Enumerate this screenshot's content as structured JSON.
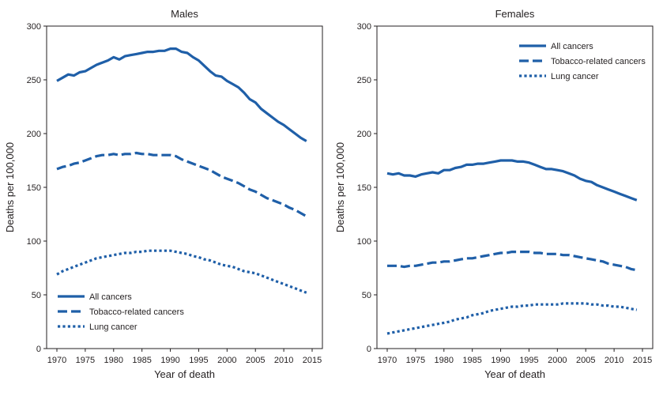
{
  "figure": {
    "xlabel": "Year of death",
    "ylabel": "Deaths per 100,000"
  },
  "chart_data": [
    {
      "type": "line",
      "title": "Males",
      "xlabel": "Year of death",
      "ylabel": "Deaths per 100,000",
      "xlim": [
        1970,
        2015
      ],
      "ylim": [
        0,
        300
      ],
      "xticks": [
        1970,
        1975,
        1980,
        1985,
        1990,
        1995,
        2000,
        2005,
        2010,
        2015
      ],
      "yticks": [
        0,
        50,
        100,
        150,
        200,
        250,
        300
      ],
      "grid": false,
      "legend_position": "bottom-left",
      "x": [
        1970,
        1971,
        1972,
        1973,
        1974,
        1975,
        1976,
        1977,
        1978,
        1979,
        1980,
        1981,
        1982,
        1983,
        1984,
        1985,
        1986,
        1987,
        1988,
        1989,
        1990,
        1991,
        1992,
        1993,
        1994,
        1995,
        1996,
        1997,
        1998,
        1999,
        2000,
        2001,
        2002,
        2003,
        2004,
        2005,
        2006,
        2007,
        2008,
        2009,
        2010,
        2011,
        2012,
        2013,
        2014
      ],
      "series": [
        {
          "name": "All cancers",
          "style": "solid",
          "values": [
            249,
            252,
            255,
            254,
            257,
            258,
            261,
            264,
            266,
            268,
            271,
            269,
            272,
            273,
            274,
            275,
            276,
            276,
            277,
            277,
            279,
            279,
            276,
            275,
            271,
            268,
            263,
            258,
            254,
            253,
            249,
            246,
            243,
            238,
            232,
            229,
            223,
            219,
            215,
            211,
            208,
            204,
            200,
            196,
            193
          ]
        },
        {
          "name": "Tobacco-related cancers",
          "style": "dashed",
          "values": [
            167,
            169,
            170,
            172,
            173,
            175,
            177,
            179,
            180,
            180,
            181,
            180,
            181,
            181,
            182,
            181,
            181,
            180,
            180,
            180,
            180,
            179,
            176,
            174,
            172,
            170,
            168,
            166,
            163,
            160,
            158,
            156,
            154,
            151,
            148,
            146,
            143,
            140,
            138,
            136,
            134,
            131,
            129,
            126,
            123
          ]
        },
        {
          "name": "Lung cancer",
          "style": "dotted",
          "values": [
            69,
            72,
            74,
            76,
            78,
            80,
            82,
            84,
            85,
            86,
            87,
            88,
            89,
            89,
            90,
            90,
            91,
            91,
            91,
            91,
            91,
            90,
            89,
            88,
            86,
            85,
            83,
            82,
            80,
            78,
            77,
            76,
            74,
            72,
            71,
            70,
            68,
            66,
            64,
            62,
            60,
            58,
            56,
            54,
            52
          ]
        }
      ]
    },
    {
      "type": "line",
      "title": "Females",
      "xlabel": "Year of death",
      "ylabel": "Deaths per 100,000",
      "xlim": [
        1970,
        2015
      ],
      "ylim": [
        0,
        300
      ],
      "xticks": [
        1970,
        1975,
        1980,
        1985,
        1990,
        1995,
        2000,
        2005,
        2010,
        2015
      ],
      "yticks": [
        0,
        50,
        100,
        150,
        200,
        250,
        300
      ],
      "grid": false,
      "legend_position": "top-right",
      "x": [
        1970,
        1971,
        1972,
        1973,
        1974,
        1975,
        1976,
        1977,
        1978,
        1979,
        1980,
        1981,
        1982,
        1983,
        1984,
        1985,
        1986,
        1987,
        1988,
        1989,
        1990,
        1991,
        1992,
        1993,
        1994,
        1995,
        1996,
        1997,
        1998,
        1999,
        2000,
        2001,
        2002,
        2003,
        2004,
        2005,
        2006,
        2007,
        2008,
        2009,
        2010,
        2011,
        2012,
        2013,
        2014
      ],
      "series": [
        {
          "name": "All cancers",
          "style": "solid",
          "values": [
            163,
            162,
            163,
            161,
            161,
            160,
            162,
            163,
            164,
            163,
            166,
            166,
            168,
            169,
            171,
            171,
            172,
            172,
            173,
            174,
            175,
            175,
            175,
            174,
            174,
            173,
            171,
            169,
            167,
            167,
            166,
            165,
            163,
            161,
            158,
            156,
            155,
            152,
            150,
            148,
            146,
            144,
            142,
            140,
            138
          ]
        },
        {
          "name": "Tobacco-related cancers",
          "style": "dashed",
          "values": [
            77,
            77,
            77,
            76,
            77,
            77,
            78,
            79,
            80,
            80,
            81,
            81,
            82,
            83,
            84,
            84,
            85,
            86,
            87,
            88,
            89,
            89,
            90,
            90,
            90,
            90,
            89,
            89,
            88,
            88,
            88,
            87,
            87,
            86,
            85,
            84,
            83,
            82,
            81,
            79,
            78,
            77,
            76,
            74,
            73
          ]
        },
        {
          "name": "Lung cancer",
          "style": "dotted",
          "values": [
            14,
            15,
            16,
            17,
            18,
            19,
            20,
            21,
            22,
            23,
            24,
            25,
            27,
            28,
            29,
            31,
            32,
            33,
            35,
            36,
            37,
            38,
            39,
            39,
            40,
            40,
            41,
            41,
            41,
            41,
            41,
            42,
            42,
            42,
            42,
            42,
            41,
            41,
            40,
            40,
            39,
            39,
            38,
            37,
            36
          ]
        }
      ]
    }
  ],
  "colors": {
    "series": "#1f5fa8",
    "axis": "#231f20",
    "text": "#231f20"
  }
}
